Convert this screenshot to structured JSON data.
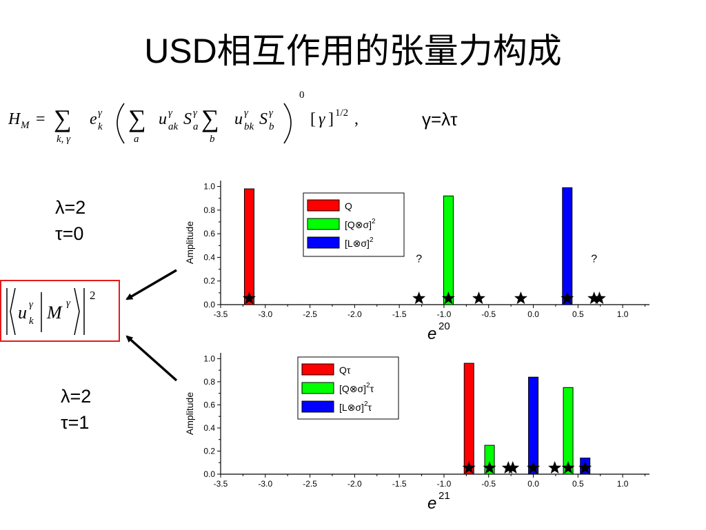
{
  "slide": {
    "title": "USD相互作用的张量力构成",
    "gamma_relation": "γ=λτ",
    "case1": {
      "lambda": "λ=2",
      "tau": "τ=0"
    },
    "case2": {
      "lambda": "λ=2",
      "tau": "τ=1"
    },
    "matrix_element_exponent": "2"
  },
  "colors": {
    "red": "#ff0000",
    "green": "#00ff00",
    "blue": "#0000ff",
    "box_border": "#e41a1c"
  },
  "chart_data": [
    {
      "type": "bar",
      "xlabel_base": "e",
      "xlabel_sup": "20",
      "ylabel": "Amplitude",
      "xlim": [
        -3.5,
        1.3
      ],
      "ylim": [
        0,
        1.05
      ],
      "x_ticks": [
        "-3.5",
        "-3.0",
        "-2.5",
        "-2.0",
        "-1.5",
        "-1.0",
        "-0.5",
        "0.0",
        "0.5",
        "1.0"
      ],
      "y_ticks": [
        "0.0",
        "0.2",
        "0.4",
        "0.6",
        "0.8",
        "1.0"
      ],
      "legend": {
        "placement": "top-center",
        "entries": [
          {
            "label": "Q",
            "color": "#ff0000",
            "sup": "",
            "suffix": ""
          },
          {
            "label": "[Q⊗σ]",
            "color": "#00ff00",
            "sup": "2",
            "suffix": ""
          },
          {
            "label": "[L⊗σ]",
            "color": "#0000ff",
            "sup": "2",
            "suffix": ""
          }
        ]
      },
      "bars": [
        {
          "x": -3.18,
          "value": 0.98,
          "color": "#ff0000"
        },
        {
          "x": -0.95,
          "value": 0.92,
          "color": "#00ff00"
        },
        {
          "x": 0.38,
          "value": 0.99,
          "color": "#0000ff"
        }
      ],
      "stars_x": [
        -3.18,
        -1.28,
        -0.95,
        -0.61,
        -0.14,
        0.38,
        0.68,
        0.74
      ],
      "annotations": [
        {
          "text": "?",
          "x": -1.28,
          "y": 0.36
        },
        {
          "text": "?",
          "x": 0.68,
          "y": 0.36
        }
      ]
    },
    {
      "type": "bar",
      "xlabel_base": "e",
      "xlabel_sup": "21",
      "ylabel": "Amplitude",
      "xlim": [
        -3.5,
        1.3
      ],
      "ylim": [
        0,
        1.05
      ],
      "x_ticks": [
        "-3.5",
        "-3.0",
        "-2.5",
        "-2.0",
        "-1.5",
        "-1.0",
        "-0.5",
        "0.0",
        "0.5",
        "1.0"
      ],
      "y_ticks": [
        "0.0",
        "0.2",
        "0.4",
        "0.6",
        "0.8",
        "1.0"
      ],
      "legend": {
        "placement": "top-center",
        "entries": [
          {
            "label": "Q",
            "color": "#ff0000",
            "sup": "",
            "suffix": "τ"
          },
          {
            "label": "[Q⊗σ]",
            "color": "#00ff00",
            "sup": "2",
            "suffix": "τ"
          },
          {
            "label": "[L⊗σ]",
            "color": "#0000ff",
            "sup": "2",
            "suffix": "τ"
          }
        ]
      },
      "bars": [
        {
          "x": -0.72,
          "value": 0.96,
          "color": "#ff0000"
        },
        {
          "x": -0.49,
          "value": 0.25,
          "color": "#00ff00"
        },
        {
          "x": 0.0,
          "value": 0.84,
          "color": "#0000ff"
        },
        {
          "x": 0.39,
          "value": 0.75,
          "color": "#00ff00"
        },
        {
          "x": 0.58,
          "value": 0.14,
          "color": "#0000ff"
        }
      ],
      "stars_x": [
        -0.72,
        -0.49,
        -0.28,
        -0.23,
        0.0,
        0.24,
        0.39,
        0.58
      ],
      "annotations": []
    }
  ]
}
